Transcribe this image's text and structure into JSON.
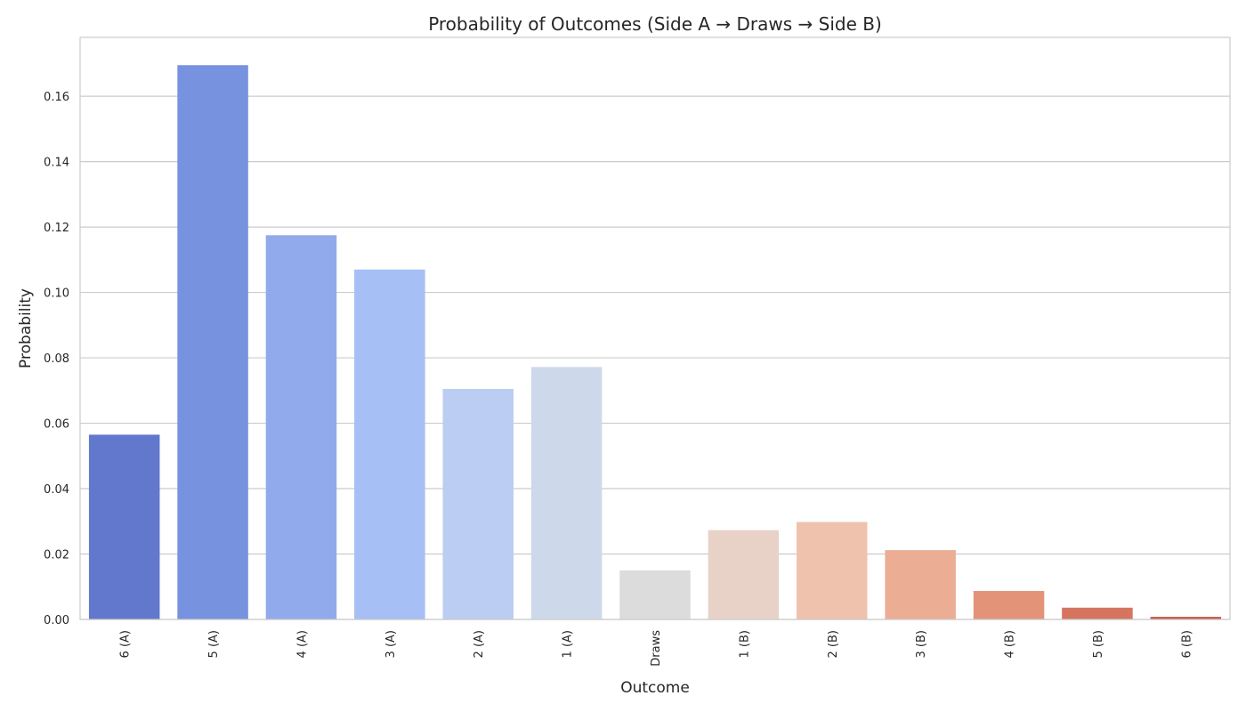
{
  "chart_data": {
    "type": "bar",
    "title": "Probability of Outcomes (Side A → Draws → Side B)",
    "xlabel": "Outcome",
    "ylabel": "Probability",
    "categories": [
      "6 (A)",
      "5 (A)",
      "4 (A)",
      "3 (A)",
      "2 (A)",
      "1 (A)",
      "Draws",
      "1 (B)",
      "2 (B)",
      "3 (B)",
      "4 (B)",
      "5 (B)",
      "6 (B)"
    ],
    "values": [
      0.0565,
      0.1695,
      0.1175,
      0.107,
      0.0705,
      0.0772,
      0.015,
      0.0273,
      0.0298,
      0.0212,
      0.0087,
      0.0036,
      0.0008
    ],
    "colors": [
      "#6278cd",
      "#7792de",
      "#90aaeb",
      "#a6bff5",
      "#bbcdf2",
      "#cdd9ea",
      "#dcdcdc",
      "#e8d2c7",
      "#efc2ae",
      "#ebad94",
      "#e29378",
      "#d6755f",
      "#c95a4b"
    ],
    "ylim": [
      0,
      0.178
    ],
    "yticks": [
      "0.00",
      "0.02",
      "0.04",
      "0.06",
      "0.08",
      "0.10",
      "0.12",
      "0.14",
      "0.16"
    ],
    "ytick_values": [
      0,
      0.02,
      0.04,
      0.06,
      0.08,
      0.1,
      0.12,
      0.14,
      0.16
    ],
    "grid": true,
    "legend": "none"
  }
}
